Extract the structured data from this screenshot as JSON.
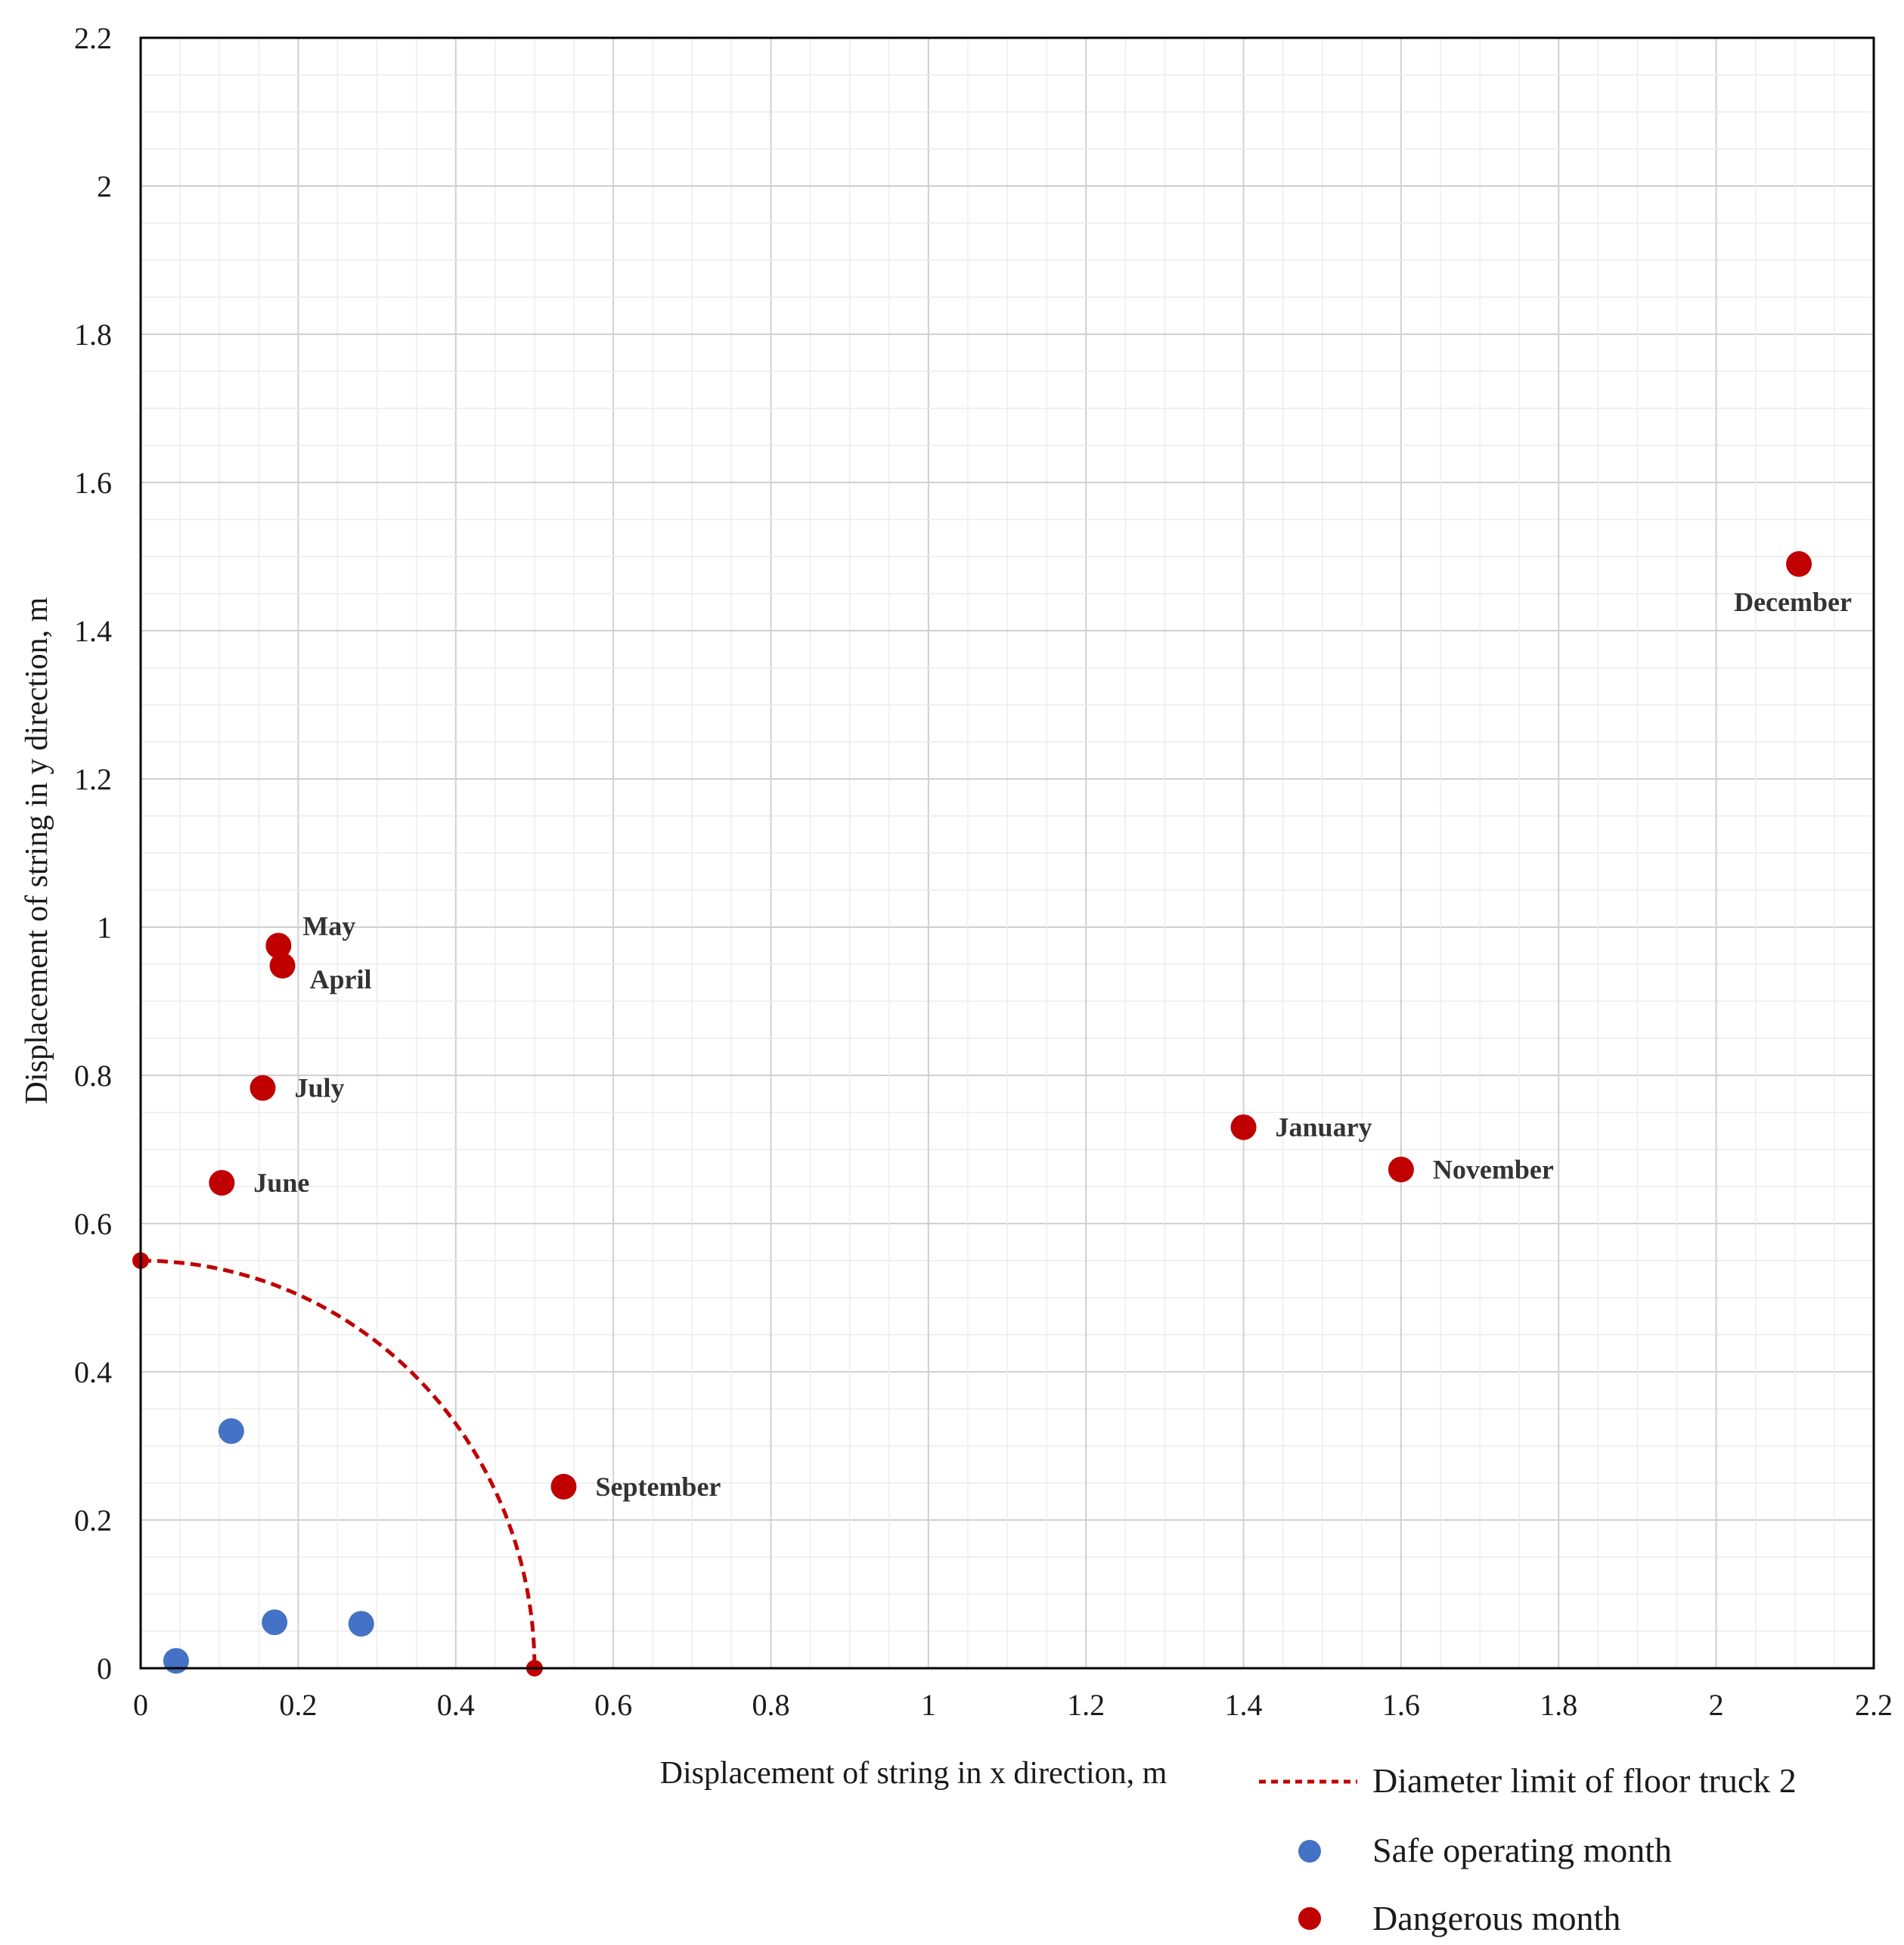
{
  "chart_data": {
    "type": "scatter",
    "xlabel": "Displacement of string in x direction, m",
    "ylabel": "Displacement of string in y direction, m",
    "xlim": [
      0,
      2.2
    ],
    "ylim": [
      0,
      2.2
    ],
    "major_step": 0.2,
    "minor_step": 0.05,
    "grid": true,
    "x_ticks": [
      "0",
      "0.2",
      "0.4",
      "0.6",
      "0.8",
      "1",
      "1.2",
      "1.4",
      "1.6",
      "1.8",
      "2",
      "2.2"
    ],
    "y_ticks": [
      "0",
      "0.2",
      "0.4",
      "0.6",
      "0.8",
      "1",
      "1.2",
      "1.4",
      "1.6",
      "1.8",
      "2",
      "2.2"
    ],
    "colors": {
      "safe": "#4472c4",
      "danger": "#c00000",
      "limit": "#c00000",
      "grid": "#d9d9d9",
      "frame": "#000000"
    },
    "limit_curve": {
      "name": "Diameter limit of floor truck 2",
      "x_radius": 0.5,
      "y_radius": 0.55,
      "endpoints": [
        {
          "x": 0,
          "y": 0.55
        },
        {
          "x": 0.5,
          "y": 0
        }
      ]
    },
    "series": [
      {
        "name": "Safe operating month",
        "key": "safe",
        "points": [
          {
            "x": 0.045,
            "y": 0.01,
            "label": ""
          },
          {
            "x": 0.115,
            "y": 0.32,
            "label": ""
          },
          {
            "x": 0.17,
            "y": 0.062,
            "label": ""
          },
          {
            "x": 0.28,
            "y": 0.06,
            "label": ""
          }
        ]
      },
      {
        "name": "Dangerous month",
        "key": "danger",
        "points": [
          {
            "x": 0.175,
            "y": 0.975,
            "label": "May",
            "pos": "right-up"
          },
          {
            "x": 0.18,
            "y": 0.948,
            "label": "April",
            "pos": "right-down"
          },
          {
            "x": 0.155,
            "y": 0.783,
            "label": "July",
            "pos": "right"
          },
          {
            "x": 0.103,
            "y": 0.655,
            "label": "June",
            "pos": "right"
          },
          {
            "x": 0.537,
            "y": 0.245,
            "label": "September",
            "pos": "right"
          },
          {
            "x": 1.4,
            "y": 0.73,
            "label": "January",
            "pos": "right"
          },
          {
            "x": 1.6,
            "y": 0.673,
            "label": "November",
            "pos": "right"
          },
          {
            "x": 2.105,
            "y": 1.49,
            "label": "December",
            "pos": "below"
          }
        ]
      }
    ],
    "legend": {
      "placement": "bottom-right",
      "items": [
        {
          "label": "Diameter limit of floor truck 2",
          "kind": "line",
          "key": "limit"
        },
        {
          "label": "Safe operating month",
          "kind": "marker",
          "key": "safe"
        },
        {
          "label": "Dangerous month",
          "kind": "marker",
          "key": "danger"
        }
      ]
    }
  }
}
